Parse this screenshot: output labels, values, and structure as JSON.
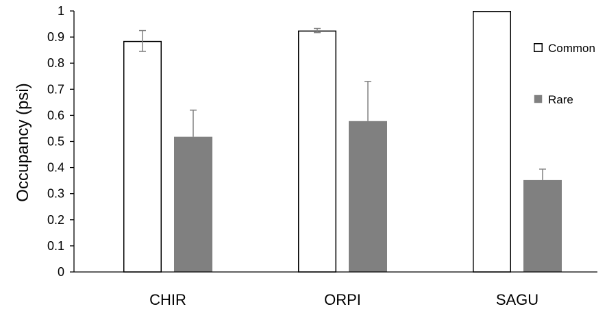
{
  "chart_data": {
    "type": "bar",
    "categories": [
      "CHIR",
      "ORPI",
      "SAGU"
    ],
    "series": [
      {
        "name": "Common",
        "values": [
          0.885,
          0.925,
          1.0
        ],
        "errors": [
          0.04,
          0.008,
          0.0
        ],
        "fill": "#ffffff",
        "stroke": "#000000"
      },
      {
        "name": "Rare",
        "values": [
          0.518,
          0.578,
          0.352
        ],
        "errors": [
          0.102,
          0.152,
          0.042
        ],
        "fill": "#808080",
        "stroke": "#808080"
      }
    ],
    "xlabel": "",
    "ylabel": "Occupancy (psi)",
    "ylim": [
      0,
      1
    ],
    "yticks": [
      0,
      0.1,
      0.2,
      0.3,
      0.4,
      0.5,
      0.6,
      0.7,
      0.8,
      0.9,
      1
    ],
    "ytick_labels": [
      "0",
      "0.1",
      "0.2",
      "0.3",
      "0.4",
      "0.5",
      "0.6",
      "0.7",
      "0.8",
      "0.9",
      "1"
    ],
    "grid": false,
    "legend_position": "right",
    "error_bar_color": "#808080"
  }
}
